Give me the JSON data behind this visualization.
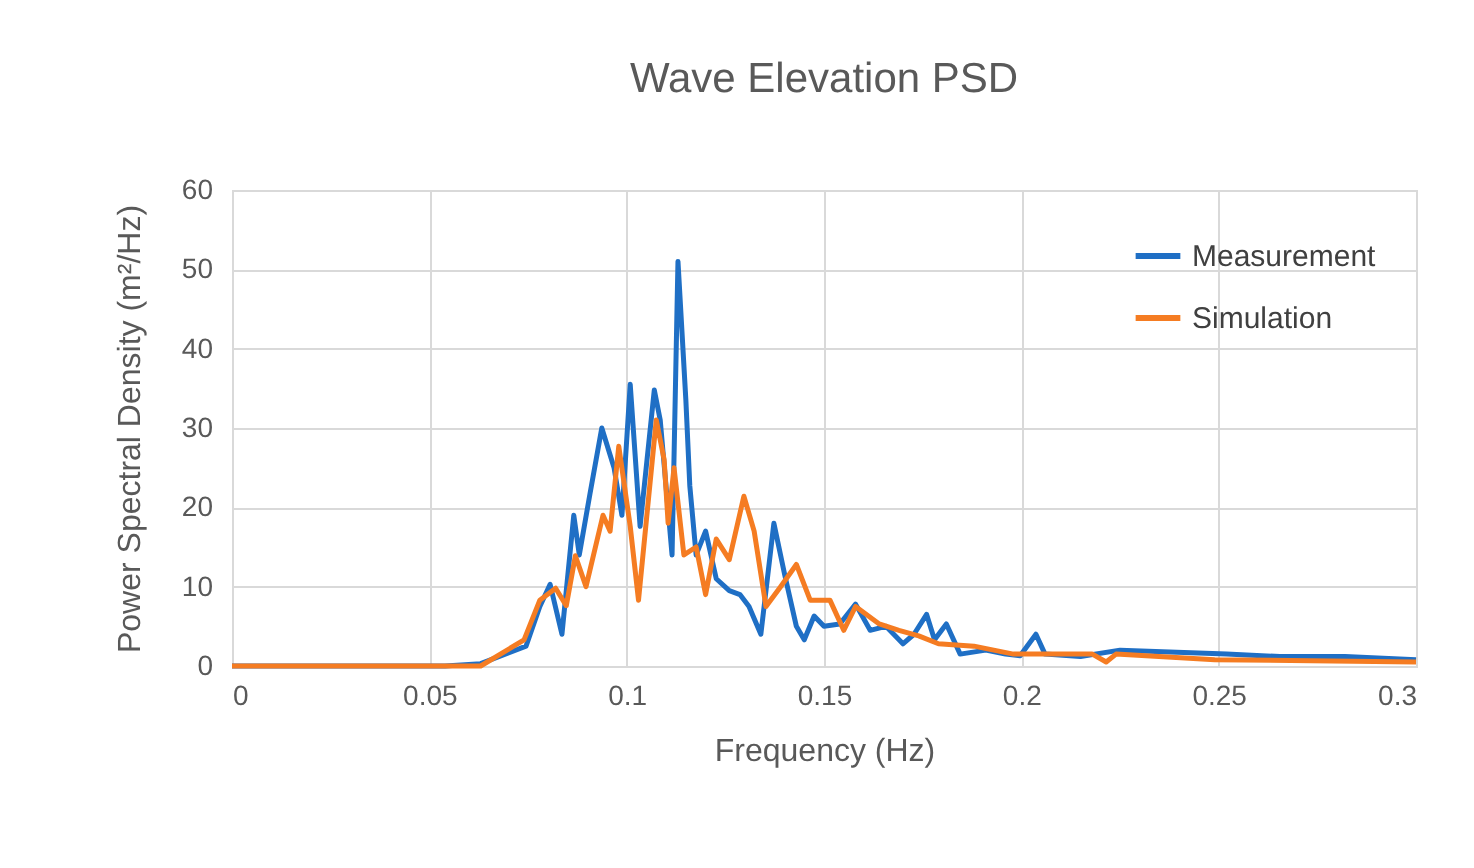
{
  "chart_data": {
    "type": "line",
    "title": "Wave Elevation PSD",
    "xlabel": "Frequency (Hz)",
    "ylabel": "Power Spectral Density (m²/Hz)",
    "xlim": [
      0,
      0.3
    ],
    "xticks": [
      0,
      0.05,
      0.1,
      0.15,
      0.2,
      0.25,
      0.3
    ],
    "ylim": [
      0,
      60
    ],
    "yticks": [
      0,
      10,
      20,
      30,
      40,
      50,
      60
    ],
    "grid": true,
    "legend": "top right",
    "marker": "none",
    "line_style": "solid",
    "series": [
      {
        "name": "Measurement",
        "color": "#1f6fc5",
        "x": [
          0,
          0.054,
          0.063,
          0.0745,
          0.078,
          0.0806,
          0.0836,
          0.0866,
          0.088,
          0.0907,
          0.0937,
          0.0968,
          0.0988,
          0.1009,
          0.1034,
          0.107,
          0.1085,
          0.1115,
          0.113,
          0.115,
          0.116,
          0.1176,
          0.12,
          0.1227,
          0.126,
          0.1287,
          0.131,
          0.134,
          0.1373,
          0.14,
          0.143,
          0.145,
          0.1475,
          0.15,
          0.154,
          0.158,
          0.1617,
          0.1657,
          0.17,
          0.1728,
          0.176,
          0.178,
          0.181,
          0.1845,
          0.191,
          0.196,
          0.1997,
          0.2037,
          0.206,
          0.215,
          0.225,
          0.252,
          0.2655,
          0.282,
          0.3
        ],
        "values": [
          0,
          0,
          0.3,
          2.5,
          7.5,
          10.3,
          4,
          19,
          14,
          21.7,
          30,
          25,
          19,
          35.5,
          17.6,
          34.8,
          31,
          14,
          51,
          33.5,
          22.7,
          14,
          17,
          11,
          9.5,
          9,
          7.5,
          4,
          18,
          11.6,
          5,
          3.3,
          6.3,
          5,
          5.3,
          7.8,
          4.5,
          5,
          2.8,
          4,
          6.5,
          3.3,
          5.3,
          1.5,
          2,
          1.5,
          1.3,
          4,
          1.5,
          1.2,
          2,
          1.5,
          1.2,
          1.2,
          0.8
        ]
      },
      {
        "name": "Simulation",
        "color": "#f57c22",
        "x": [
          0,
          0.063,
          0.074,
          0.078,
          0.082,
          0.0847,
          0.087,
          0.0897,
          0.094,
          0.0958,
          0.098,
          0.1009,
          0.103,
          0.105,
          0.1075,
          0.1095,
          0.1105,
          0.112,
          0.1145,
          0.1176,
          0.12,
          0.1227,
          0.126,
          0.1297,
          0.1323,
          0.1353,
          0.139,
          0.143,
          0.1465,
          0.1515,
          0.155,
          0.158,
          0.164,
          0.169,
          0.174,
          0.179,
          0.188,
          0.198,
          0.208,
          0.218,
          0.2215,
          0.224,
          0.249,
          0.3
        ],
        "values": [
          0,
          0,
          3.3,
          8.3,
          9.8,
          7.6,
          13.9,
          10,
          19,
          17,
          27.7,
          17.6,
          8.3,
          18.4,
          31,
          26,
          18,
          25,
          14,
          15,
          9,
          16,
          13.4,
          21.4,
          17,
          7.5,
          10,
          12.8,
          8.3,
          8.3,
          4.5,
          7.5,
          5.3,
          4.5,
          3.8,
          2.8,
          2.5,
          1.5,
          1.5,
          1.5,
          0.5,
          1.5,
          0.8,
          0.5
        ]
      }
    ]
  }
}
